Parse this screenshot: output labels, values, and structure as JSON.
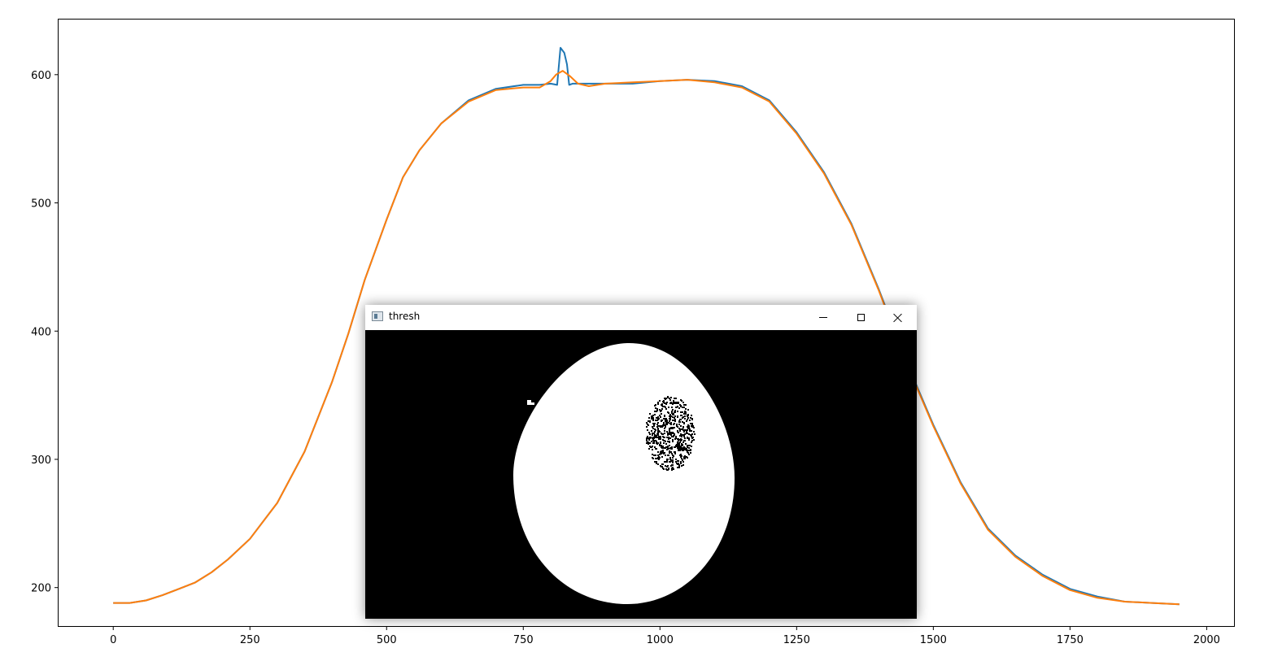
{
  "chart_data": {
    "type": "line",
    "title": "",
    "xlabel": "",
    "ylabel": "",
    "xlim": [
      -100,
      2050
    ],
    "ylim": [
      170,
      643
    ],
    "x_ticks": [
      0,
      250,
      500,
      750,
      1000,
      1250,
      1500,
      1750,
      2000
    ],
    "y_ticks": [
      200,
      300,
      400,
      500,
      600
    ],
    "series": [
      {
        "color": "#1f77b4",
        "x": [
          0,
          30,
          60,
          90,
          120,
          150,
          180,
          210,
          250,
          300,
          350,
          400,
          430,
          460,
          500,
          530,
          560,
          600,
          650,
          700,
          750,
          780,
          800,
          812,
          818,
          825,
          830,
          834,
          840,
          880,
          950,
          1000,
          1050,
          1100,
          1150,
          1200,
          1250,
          1300,
          1350,
          1400,
          1450,
          1500,
          1550,
          1600,
          1650,
          1700,
          1750,
          1800,
          1850,
          1900,
          1950
        ],
        "y": [
          188,
          188,
          190,
          194,
          199,
          204,
          212,
          222,
          238,
          266,
          306,
          360,
          398,
          440,
          487,
          520,
          541,
          562,
          580,
          589,
          592,
          592,
          593,
          592,
          621,
          617,
          608,
          592,
          593,
          593,
          593,
          595,
          596,
          595,
          591,
          580,
          555,
          524,
          484,
          433,
          377,
          327,
          282,
          246,
          225,
          210,
          199,
          193,
          189,
          188,
          187
        ]
      },
      {
        "color": "#ff7f0e",
        "x": [
          0,
          30,
          60,
          90,
          120,
          150,
          180,
          210,
          250,
          300,
          350,
          400,
          430,
          460,
          500,
          530,
          560,
          600,
          650,
          700,
          750,
          780,
          800,
          810,
          822,
          835,
          850,
          870,
          900,
          950,
          1000,
          1050,
          1100,
          1150,
          1200,
          1250,
          1300,
          1350,
          1400,
          1450,
          1500,
          1550,
          1600,
          1650,
          1700,
          1750,
          1800,
          1850,
          1900,
          1950
        ],
        "y": [
          188,
          188,
          190,
          194,
          199,
          204,
          212,
          222,
          238,
          266,
          306,
          360,
          398,
          440,
          487,
          520,
          541,
          562,
          579,
          588,
          590,
          590,
          595,
          600,
          603,
          599,
          593,
          591,
          593,
          594,
          595,
          596,
          594,
          590,
          579,
          554,
          523,
          483,
          432,
          376,
          326,
          281,
          245,
          224,
          209,
          198,
          192,
          189,
          188,
          187
        ]
      }
    ]
  },
  "window": {
    "title": "thresh",
    "minimize_label": "Minimize",
    "maximize_label": "Maximize",
    "close_label": "Close",
    "icon": "window-app-icon"
  },
  "image": {
    "background_color": "#000000",
    "blob_color": "#ffffff"
  }
}
